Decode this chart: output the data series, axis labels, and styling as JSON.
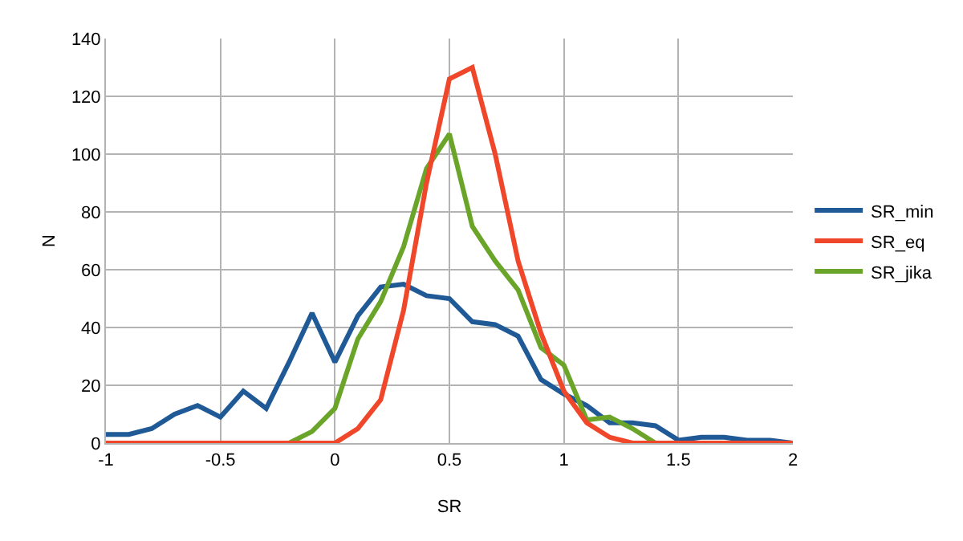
{
  "chart_data": {
    "type": "line",
    "xlabel": "SR",
    "ylabel": "N",
    "x": [
      -1,
      -0.9,
      -0.8,
      -0.7,
      -0.6,
      -0.5,
      -0.4,
      -0.3,
      -0.2,
      -0.1,
      0,
      0.1,
      0.2,
      0.3,
      0.4,
      0.5,
      0.6,
      0.7,
      0.8,
      0.9,
      1,
      1.1,
      1.2,
      1.3,
      1.4,
      1.5,
      1.6,
      1.7,
      1.8,
      1.9,
      2
    ],
    "series": [
      {
        "name": "SR_min",
        "color": "#1f5a96",
        "values": [
          3,
          3,
          5,
          10,
          13,
          9,
          18,
          12,
          28,
          45,
          28,
          44,
          54,
          55,
          51,
          50,
          42,
          41,
          37,
          22,
          17,
          13,
          7,
          7,
          6,
          1,
          2,
          2,
          1,
          1,
          0
        ]
      },
      {
        "name": "SR_eq",
        "color": "#f0462a",
        "values": [
          0,
          0,
          0,
          0,
          0,
          0,
          0,
          0,
          0,
          0,
          0,
          5,
          15,
          46,
          90,
          126,
          130,
          100,
          63,
          38,
          18,
          7,
          2,
          0,
          0,
          0,
          0,
          0,
          0,
          0,
          0
        ]
      },
      {
        "name": "SR_jika",
        "color": "#6aa52a",
        "values": [
          null,
          null,
          null,
          null,
          null,
          null,
          null,
          null,
          0,
          4,
          12,
          36,
          49,
          68,
          95,
          107,
          75,
          63,
          53,
          33,
          27,
          8,
          9,
          5,
          0,
          null,
          null,
          null,
          null,
          null,
          null
        ]
      }
    ],
    "xlim": [
      -1,
      2
    ],
    "xticks": [
      -1,
      -0.5,
      0,
      0.5,
      1,
      1.5,
      2
    ],
    "ylim": [
      0,
      140
    ],
    "yticks": [
      0,
      20,
      40,
      60,
      80,
      100,
      120,
      140
    ],
    "grid": true,
    "legend": "right",
    "marker": "none",
    "line_style": "solid"
  }
}
